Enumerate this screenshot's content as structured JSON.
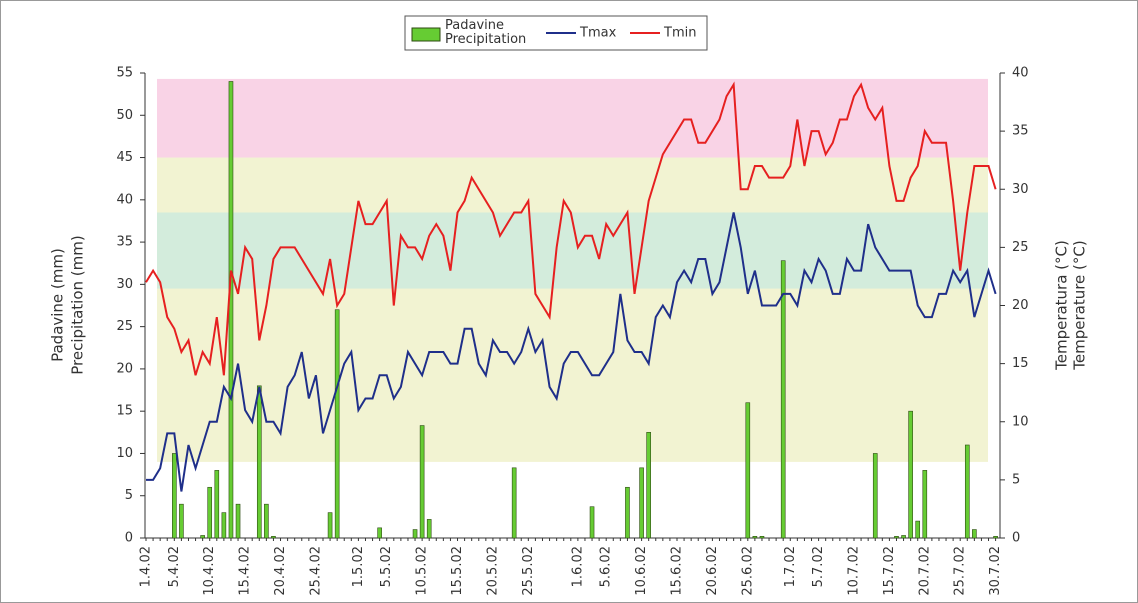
{
  "chart_data": {
    "type": "bar_line",
    "y_label": [
      "Padavine (mm)",
      "Precipitation (mm)"
    ],
    "y2_label": [
      "Temperatura (°C)",
      "Temperature (°C)"
    ],
    "categories": [
      "1.4.02",
      null,
      null,
      null,
      "5.4.02",
      null,
      null,
      null,
      null,
      "10.4.02",
      null,
      null,
      null,
      null,
      "15.4.02",
      null,
      null,
      null,
      null,
      "20.4.02",
      null,
      null,
      null,
      null,
      "25.4.02",
      null,
      null,
      null,
      null,
      null,
      "1.5.02",
      null,
      null,
      null,
      "5.5.02",
      null,
      null,
      null,
      null,
      "10.5.02",
      null,
      null,
      null,
      null,
      "15.5.02",
      null,
      null,
      null,
      null,
      "20.5.02",
      null,
      null,
      null,
      null,
      "25.5.02",
      null,
      null,
      null,
      null,
      null,
      null,
      "1.6.02",
      null,
      null,
      null,
      "5.6.02",
      null,
      null,
      null,
      null,
      "10.6.02",
      null,
      null,
      null,
      null,
      "15.6.02",
      null,
      null,
      null,
      null,
      "20.6.02",
      null,
      null,
      null,
      null,
      "25.6.02",
      null,
      null,
      null,
      null,
      null,
      "1.7.02",
      null,
      null,
      null,
      "5.7.02",
      null,
      null,
      null,
      null,
      "10.7.02",
      null,
      null,
      null,
      null,
      "15.7.02",
      null,
      null,
      null,
      null,
      "20.7.02",
      null,
      null,
      null,
      null,
      "25.7.02",
      null,
      null,
      null,
      null,
      "30.7.02"
    ],
    "series": [
      {
        "name": "Padavine Precipitation",
        "kind": "bar",
        "color": "#66cc33",
        "values": [
          0,
          0,
          0,
          0,
          10,
          4,
          0,
          0,
          0.3,
          6,
          8,
          3,
          54,
          4,
          0,
          0,
          18,
          4,
          0.2,
          0,
          0,
          0,
          0,
          0,
          0,
          0,
          3,
          27,
          0,
          0,
          0,
          0,
          0,
          1.2,
          0,
          0,
          0,
          0,
          1,
          13.3,
          2.2,
          0,
          0,
          0,
          0,
          0,
          0,
          0,
          0,
          0,
          0,
          0,
          8.3,
          0,
          0,
          0,
          0,
          0,
          0,
          0,
          0,
          0,
          0,
          3.7,
          0,
          0,
          0,
          0,
          6,
          0,
          8.3,
          12.5,
          0,
          0,
          0,
          0,
          0,
          0,
          0,
          0,
          0,
          0,
          0,
          0,
          0,
          16,
          0.2,
          0.2,
          0,
          0,
          32.8,
          0,
          0,
          0,
          0,
          0,
          0,
          0,
          0,
          0,
          0,
          0,
          0,
          10,
          0,
          0,
          0.2,
          0.3,
          15,
          2,
          8,
          0,
          0,
          0,
          0,
          0,
          11,
          1,
          0,
          0,
          0.2
        ]
      },
      {
        "name": "Tmax",
        "kind": "line",
        "axis": "y2",
        "color": "#1f2f8a",
        "values": [
          5,
          5,
          6,
          9,
          9,
          4,
          8,
          6,
          8,
          10,
          10,
          13,
          12,
          15,
          11,
          10,
          13,
          10,
          10,
          9,
          13,
          14,
          16,
          12,
          14,
          9,
          11,
          13,
          15,
          16,
          11,
          12,
          12,
          14,
          14,
          12,
          13,
          16,
          15,
          14,
          16,
          16,
          16,
          15,
          15,
          18,
          18,
          15,
          14,
          17,
          16,
          16,
          15,
          16,
          18,
          16,
          17,
          13,
          12,
          15,
          16,
          16,
          15,
          14,
          14,
          15,
          16,
          21,
          17,
          16,
          16,
          15,
          19,
          20,
          19,
          22,
          23,
          22,
          24,
          24,
          21,
          22,
          25,
          28,
          25,
          21,
          23,
          20,
          20,
          20,
          21,
          21,
          20,
          23,
          22,
          24,
          23,
          21,
          21,
          24,
          23,
          23,
          27,
          25,
          24,
          23,
          23,
          23,
          23,
          20,
          19,
          19,
          21,
          21,
          23,
          22,
          23,
          19,
          21,
          23,
          21
        ]
      },
      {
        "name": "Tmin",
        "kind": "line",
        "axis": "y2",
        "color": "#e62020",
        "values": [
          22,
          23,
          22,
          19,
          18,
          16,
          17,
          14,
          16,
          15,
          19,
          14,
          23,
          21,
          25,
          24,
          17,
          20,
          24,
          25,
          25,
          25,
          24,
          23,
          22,
          21,
          24,
          20,
          21,
          25,
          29,
          27,
          27,
          28,
          29,
          20,
          26,
          25,
          25,
          24,
          26,
          27,
          26,
          23,
          28,
          29,
          31,
          30,
          29,
          28,
          26,
          27,
          28,
          28,
          29,
          21,
          20,
          19,
          25,
          29,
          28,
          25,
          26,
          26,
          24,
          27,
          26,
          27,
          28,
          21,
          25,
          29,
          31,
          33,
          34,
          35,
          36,
          36,
          34,
          34,
          35,
          36,
          38,
          39,
          30,
          30,
          32,
          32,
          31,
          31,
          31,
          32,
          36,
          32,
          35,
          35,
          33,
          34,
          36,
          36,
          38,
          39,
          37,
          36,
          37,
          32,
          29,
          29,
          31,
          32,
          35,
          34,
          34,
          34,
          29,
          23,
          28,
          32,
          32,
          32,
          30
        ]
      }
    ],
    "bands": [
      {
        "from": 9,
        "to": 45,
        "color": "#f2f3d2"
      },
      {
        "from": 29.5,
        "to": 38.5,
        "color": "#d3ecdc"
      },
      {
        "from": 45,
        "to": 54.3,
        "color": "#f9d3e6"
      }
    ],
    "ylim": [
      0,
      55
    ],
    "yticks": [
      0,
      5,
      10,
      15,
      20,
      25,
      30,
      35,
      40,
      45,
      50,
      55
    ],
    "y2lim": [
      0,
      40
    ],
    "y2ticks": [
      0,
      5,
      10,
      15,
      20,
      25,
      30,
      35,
      40
    ]
  }
}
